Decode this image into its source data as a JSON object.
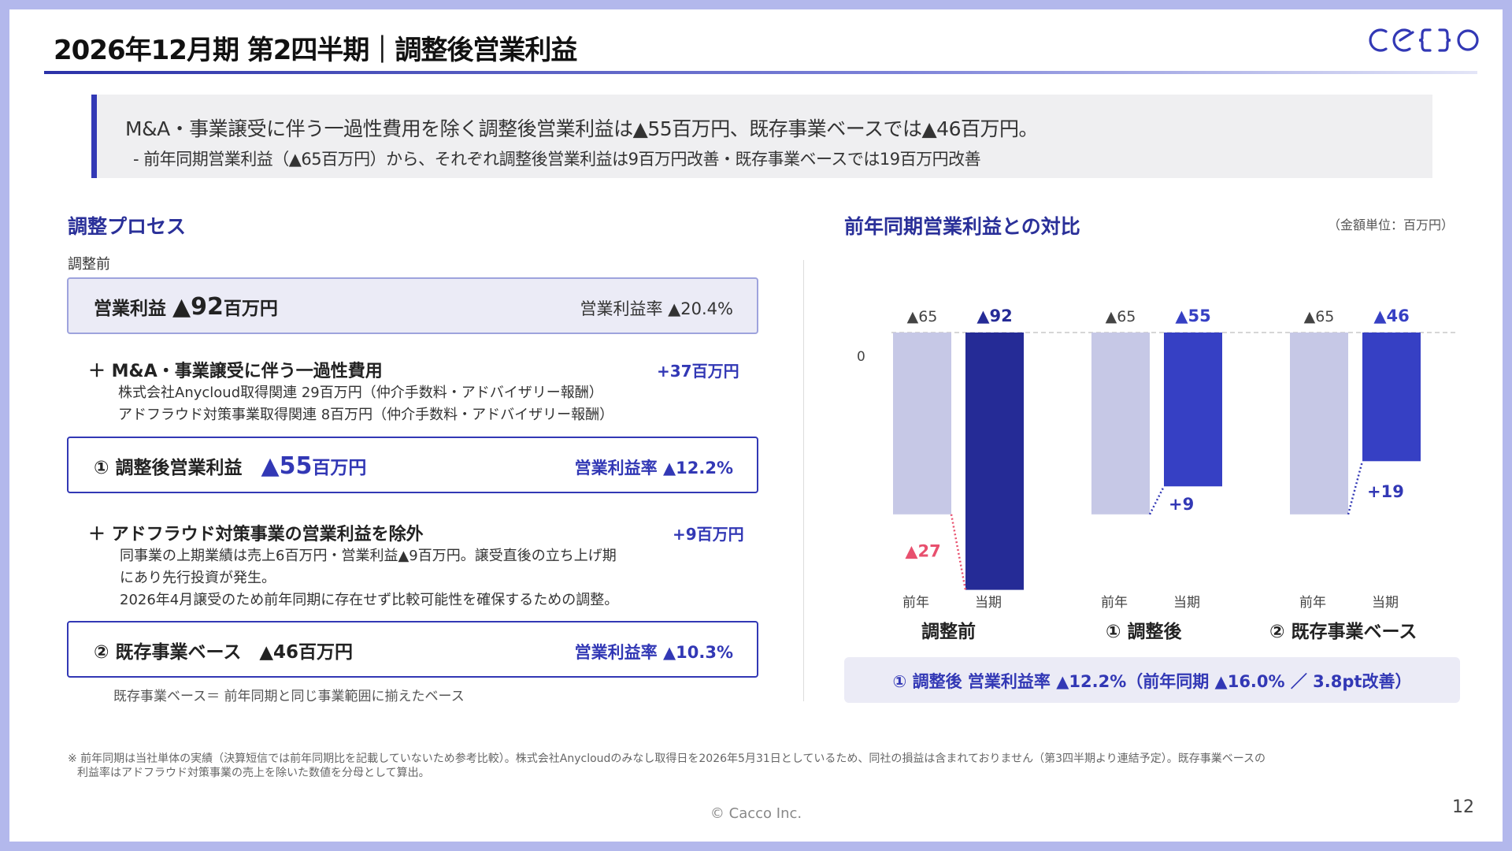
{
  "header": {
    "title": "2026年12月期 第2四半期｜調整後営業利益",
    "logo_text": "cacco"
  },
  "summary": {
    "line1": "M&A・事業譲受に伴う一過性費用を除く調整後営業利益は▲55百万円、既存事業ベースでは▲46百万円。",
    "line2": "- 前年同期営業利益（▲65百万円）から、それぞれ調整後営業利益は9百万円改善・既存事業ベースでは19百万円改善"
  },
  "process": {
    "heading": "調整プロセス",
    "before_label": "調整前",
    "before_box": {
      "label": "営業利益",
      "value": "▲92",
      "unit": "百万円",
      "rate": "営業利益率 ▲20.4%"
    },
    "step1": {
      "title": "＋  M&A・事業譲受に伴う一過性費用",
      "value": "+37百万円",
      "note1": "株式会社Anycloud取得関連 29百万円（仲介手数料・アドバイザリー報酬）",
      "note2": "アドフラウド対策事業取得関連 8百万円（仲介手数料・アドバイザリー報酬）"
    },
    "adjusted_box": {
      "label": "① 調整後営業利益",
      "value": "▲55",
      "unit": "百万円",
      "rate": "営業利益率 ▲12.2%"
    },
    "step2": {
      "title": "＋ アドフラウド対策事業の営業利益を除外",
      "value": "+9百万円",
      "note1": "同事業の上期業績は売上6百万円・営業利益▲9百万円。譲受直後の立ち上げ期",
      "note2": "にあり先行投資が発生。",
      "note3": "2026年4月譲受のため前年同期に存在せず比較可能性を確保するための調整。"
    },
    "existing_box": {
      "label": "② 既存事業ベース　▲46百万円",
      "rate": "営業利益率 ▲10.3%"
    },
    "existing_note": "既存事業ベース＝ 前年同期と同じ事業範囲に揃えたベース"
  },
  "comparison": {
    "heading": "前年同期営業利益との対比",
    "unit_note": "（金額単位：百万円）",
    "result": "① 調整後 営業利益率 ▲12.2%（前年同期 ▲16.0% ／ 3.8pt改善）"
  },
  "chart_data": {
    "type": "bar",
    "groups": [
      "調整前",
      "① 調整後",
      "② 既存事業ベース"
    ],
    "bar_labels": [
      "前年",
      "当期"
    ],
    "zero_label": "0",
    "series": [
      {
        "name": "前年",
        "values": [
          -65,
          -65,
          -65
        ],
        "labels": [
          "▲65",
          "▲65",
          "▲65"
        ]
      },
      {
        "name": "当期",
        "values": [
          -92,
          -55,
          -46
        ],
        "labels": [
          "▲92",
          "▲55",
          "▲46"
        ]
      }
    ],
    "differences": [
      {
        "label": "▲27",
        "value": -27
      },
      {
        "label": "+9",
        "value": 9
      },
      {
        "label": "+19",
        "value": 19
      }
    ],
    "colors": {
      "prior": "#c6c8e6",
      "current_before": "#252b96",
      "current": "#3640c4",
      "negative": "#e8506e",
      "positive": "#3238b5"
    }
  },
  "footer": {
    "footnote1": "※ 前年同期は当社単体の実績（決算短信では前年同期比を記載していないため参考比較）。株式会社Anycloudのみなし取得日を2026年5月31日としているため、同社の損益は含まれておりません（第3四半期より連結予定）。既存事業ベースの",
    "footnote2": "利益率はアドフラウド対策事業の売上を除いた数値を分母として算出。",
    "copyright": "© Cacco Inc.",
    "page_number": "12"
  }
}
